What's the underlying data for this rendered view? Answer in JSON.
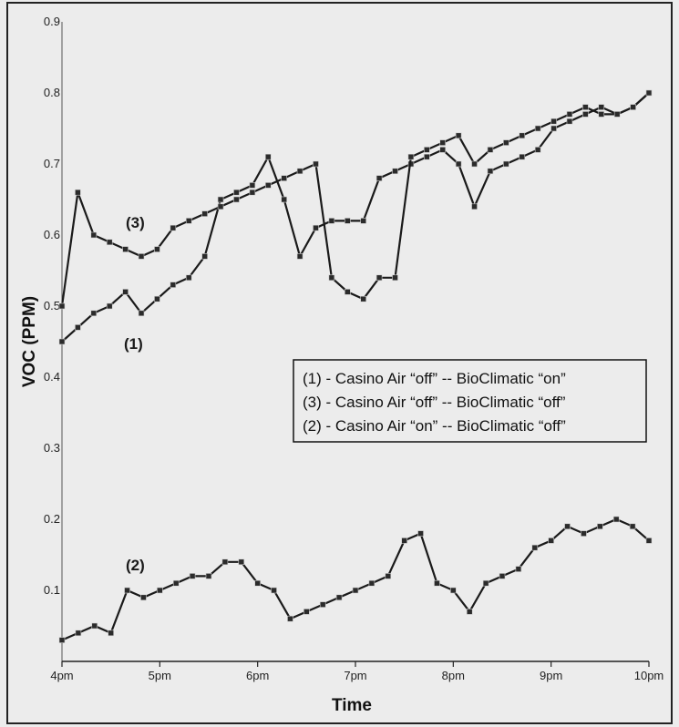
{
  "chart_data": {
    "type": "line",
    "title": "",
    "xlabel": "Time",
    "ylabel": "VOC (PPM)",
    "xlim": [
      0,
      6
    ],
    "ylim": [
      0,
      0.9
    ],
    "x_ticks": [
      {
        "value": 0,
        "label": "4pm"
      },
      {
        "value": 1,
        "label": "5pm"
      },
      {
        "value": 2,
        "label": "6pm"
      },
      {
        "value": 3,
        "label": "7pm"
      },
      {
        "value": 4,
        "label": "8pm"
      },
      {
        "value": 5,
        "label": "9pm"
      },
      {
        "value": 6,
        "label": "10pm"
      }
    ],
    "y_ticks": [
      {
        "value": 0.1,
        "label": "0.1"
      },
      {
        "value": 0.2,
        "label": "0.2"
      },
      {
        "value": 0.3,
        "label": "0.3"
      },
      {
        "value": 0.4,
        "label": "0.4"
      },
      {
        "value": 0.5,
        "label": "0.5"
      },
      {
        "value": 0.6,
        "label": "0.6"
      },
      {
        "value": 0.7,
        "label": "0.7"
      },
      {
        "value": 0.8,
        "label": "0.8"
      },
      {
        "value": 0.9,
        "label": "0.9"
      }
    ],
    "grid": false,
    "legend_position": "center-right",
    "series": [
      {
        "key": "1",
        "label": "(1)",
        "legend": "(1) - Casino Air “off” -- BioClimatic “on”",
        "values": [
          0.45,
          0.47,
          0.49,
          0.5,
          0.52,
          0.49,
          0.51,
          0.53,
          0.54,
          0.57,
          0.65,
          0.66,
          0.67,
          0.71,
          0.65,
          0.57,
          0.61,
          0.62,
          0.62,
          0.62,
          0.68,
          0.69,
          0.7,
          0.71,
          0.72,
          0.7,
          0.64,
          0.69,
          0.7,
          0.71,
          0.72,
          0.75,
          0.76,
          0.77,
          0.78,
          0.77,
          0.78,
          0.8
        ]
      },
      {
        "key": "3",
        "label": "(3)",
        "legend": "(3) - Casino Air “off” -- BioClimatic “off”",
        "values": [
          0.5,
          0.66,
          0.6,
          0.59,
          0.58,
          0.57,
          0.58,
          0.61,
          0.62,
          0.63,
          0.64,
          0.65,
          0.66,
          0.67,
          0.68,
          0.69,
          0.7,
          0.54,
          0.52,
          0.51,
          0.54,
          0.54,
          0.71,
          0.72,
          0.73,
          0.74,
          0.7,
          0.72,
          0.73,
          0.74,
          0.75,
          0.76,
          0.77,
          0.78,
          0.77,
          0.77,
          0.78,
          0.8
        ]
      },
      {
        "key": "2",
        "label": "(2)",
        "legend": "(2) - Casino Air “on” -- BioClimatic “off”",
        "values": [
          0.03,
          0.04,
          0.05,
          0.04,
          0.1,
          0.09,
          0.1,
          0.11,
          0.12,
          0.12,
          0.14,
          0.14,
          0.11,
          0.1,
          0.06,
          0.07,
          0.08,
          0.09,
          0.1,
          0.11,
          0.12,
          0.17,
          0.18,
          0.11,
          0.1,
          0.07,
          0.11,
          0.12,
          0.13,
          0.16,
          0.17,
          0.19,
          0.18,
          0.19,
          0.2,
          0.19,
          0.17
        ]
      }
    ]
  }
}
